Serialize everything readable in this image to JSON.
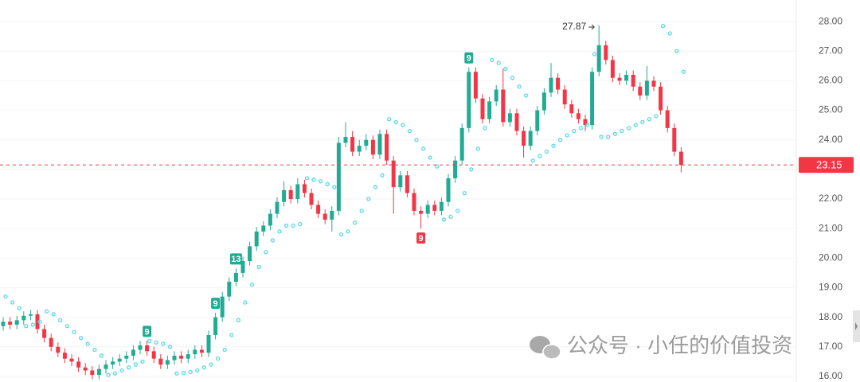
{
  "chart_data": {
    "type": "candlestick",
    "open": [
      17.7,
      17.85,
      17.75,
      17.9,
      18.05,
      18.1,
      17.6,
      17.3,
      17.0,
      16.8,
      16.6,
      16.5,
      16.3,
      16.2,
      16.05,
      16.25,
      16.4,
      16.5,
      16.6,
      16.7,
      16.9,
      17.05,
      16.85,
      16.6,
      16.4,
      16.55,
      16.7,
      16.6,
      16.75,
      16.9,
      16.8,
      17.4,
      18.0,
      18.7,
      19.2,
      19.5,
      19.9,
      20.4,
      20.9,
      21.1,
      21.5,
      21.9,
      22.3,
      22.0,
      22.5,
      22.2,
      21.8,
      21.5,
      21.3,
      21.6,
      23.9,
      24.1,
      23.6,
      23.8,
      24.0,
      23.5,
      24.2,
      23.3,
      22.4,
      22.8,
      22.2,
      21.6,
      21.5,
      21.8,
      21.6,
      21.9,
      22.7,
      23.3,
      24.4,
      26.3,
      25.4,
      24.7,
      25.3,
      25.7,
      24.6,
      24.9,
      24.3,
      23.8,
      24.3,
      25.0,
      25.6,
      26.1,
      25.7,
      25.2,
      24.9,
      24.7,
      24.5,
      26.3,
      27.2,
      26.7,
      26.1,
      26.0,
      26.2,
      25.8,
      25.5,
      26.0,
      25.8,
      25.0,
      24.4,
      23.6
    ],
    "high": [
      18.0,
      18.0,
      18.05,
      18.2,
      18.25,
      18.25,
      17.75,
      17.45,
      17.15,
      16.95,
      16.75,
      16.65,
      16.45,
      16.35,
      16.4,
      16.55,
      16.65,
      16.75,
      16.85,
      17.05,
      17.2,
      17.2,
      17.0,
      16.75,
      16.7,
      16.85,
      16.85,
      16.9,
      17.05,
      17.05,
      17.55,
      18.15,
      18.85,
      19.35,
      19.65,
      20.05,
      20.55,
      21.05,
      21.25,
      21.65,
      22.05,
      22.6,
      22.45,
      22.7,
      22.65,
      22.35,
      21.95,
      21.65,
      21.75,
      24.1,
      24.6,
      24.3,
      24.0,
      24.2,
      24.15,
      24.35,
      24.35,
      23.45,
      22.95,
      22.95,
      22.35,
      21.75,
      21.95,
      21.95,
      22.05,
      22.85,
      23.45,
      24.55,
      26.45,
      26.45,
      25.55,
      25.45,
      25.85,
      26.4,
      25.05,
      25.05,
      24.45,
      24.45,
      25.15,
      25.75,
      26.6,
      26.25,
      25.85,
      25.35,
      25.05,
      24.85,
      26.45,
      27.87,
      27.35,
      26.85,
      26.25,
      26.35,
      26.35,
      25.95,
      26.5,
      26.15,
      25.95,
      25.15,
      24.55,
      23.75
    ],
    "low": [
      17.55,
      17.6,
      17.6,
      17.75,
      17.9,
      17.45,
      17.15,
      16.85,
      16.65,
      16.45,
      16.35,
      16.15,
      16.05,
      15.9,
      15.9,
      16.1,
      16.25,
      16.35,
      16.45,
      16.55,
      16.75,
      16.7,
      16.45,
      16.25,
      16.25,
      16.4,
      16.45,
      16.45,
      16.6,
      16.65,
      16.65,
      17.25,
      17.85,
      18.55,
      19.05,
      19.35,
      19.75,
      20.25,
      20.75,
      20.95,
      21.35,
      21.75,
      21.85,
      21.85,
      22.05,
      21.65,
      21.35,
      21.15,
      20.9,
      21.45,
      23.75,
      23.45,
      23.45,
      23.65,
      23.35,
      23.35,
      23.15,
      21.5,
      22.25,
      22.05,
      21.45,
      21.0,
      21.35,
      21.45,
      21.45,
      21.75,
      22.55,
      23.15,
      24.25,
      25.25,
      24.55,
      24.55,
      25.15,
      24.45,
      24.45,
      24.15,
      23.4,
      23.65,
      24.15,
      24.85,
      25.45,
      25.55,
      25.05,
      24.75,
      24.55,
      24.3,
      24.35,
      26.15,
      26.55,
      25.95,
      25.85,
      25.85,
      25.65,
      25.35,
      25.35,
      25.65,
      24.85,
      24.25,
      23.45,
      22.9
    ],
    "close": [
      17.85,
      17.75,
      17.9,
      18.05,
      18.1,
      17.6,
      17.3,
      17.0,
      16.8,
      16.6,
      16.5,
      16.3,
      16.2,
      16.05,
      16.25,
      16.4,
      16.5,
      16.6,
      16.7,
      16.9,
      17.05,
      16.85,
      16.6,
      16.4,
      16.55,
      16.7,
      16.6,
      16.75,
      16.9,
      16.8,
      17.4,
      18.0,
      18.7,
      19.2,
      19.5,
      19.9,
      20.4,
      20.9,
      21.1,
      21.5,
      21.9,
      22.3,
      22.0,
      22.5,
      22.2,
      21.8,
      21.5,
      21.3,
      21.6,
      23.9,
      24.1,
      23.6,
      23.8,
      24.0,
      23.5,
      24.2,
      23.3,
      22.4,
      22.8,
      22.2,
      21.6,
      21.5,
      21.8,
      21.6,
      21.9,
      22.7,
      23.3,
      24.4,
      26.3,
      25.4,
      24.7,
      25.3,
      25.7,
      24.6,
      24.9,
      24.3,
      23.8,
      24.3,
      25.0,
      25.6,
      26.1,
      25.7,
      25.2,
      24.9,
      24.7,
      24.5,
      26.3,
      27.2,
      26.7,
      26.1,
      26.0,
      26.2,
      25.8,
      25.5,
      26.0,
      25.8,
      25.0,
      24.4,
      23.6,
      23.15
    ],
    "sar": [
      18.7,
      18.5,
      18.3,
      17.7,
      17.75,
      17.85,
      18.2,
      18.1,
      17.9,
      17.7,
      17.5,
      17.3,
      17.1,
      16.9,
      16.7,
      16.05,
      16.1,
      16.2,
      16.3,
      16.4,
      16.5,
      17.2,
      17.15,
      17.1,
      17.0,
      16.1,
      16.12,
      16.15,
      16.2,
      16.3,
      16.4,
      16.6,
      16.9,
      17.4,
      17.9,
      18.5,
      19.1,
      19.7,
      20.2,
      20.6,
      20.9,
      21.1,
      21.1,
      21.15,
      22.7,
      22.65,
      22.6,
      22.5,
      22.4,
      20.8,
      20.9,
      21.2,
      21.6,
      22.0,
      22.4,
      22.8,
      24.7,
      24.6,
      24.5,
      24.3,
      24.0,
      23.7,
      23.4,
      23.1,
      21.3,
      21.4,
      21.6,
      22.2,
      23.0,
      23.7,
      24.4,
      26.7,
      26.6,
      26.4,
      26.1,
      25.8,
      25.5,
      23.3,
      23.45,
      23.6,
      23.8,
      24.0,
      24.15,
      24.3,
      24.4,
      24.5,
      26.9,
      24.1,
      24.1,
      24.2,
      24.3,
      24.4,
      24.5,
      24.6,
      24.7,
      24.8,
      27.85,
      27.6,
      27.0,
      26.3
    ],
    "up_color": "#22ab94",
    "down_color": "#f23645",
    "sar_color": "#5ad8e6",
    "markers": [
      {
        "index": 21,
        "label": "9",
        "position": "above"
      },
      {
        "index": 31,
        "label": "9",
        "position": "above"
      },
      {
        "index": 34,
        "label": "13",
        "position": "above"
      },
      {
        "index": 61,
        "label": "9",
        "position": "below"
      },
      {
        "index": 68,
        "label": "9",
        "position": "above"
      }
    ],
    "max_annotation": 27.87,
    "last_price": 23.15,
    "ylim": [
      15.81,
      28.73
    ],
    "yticks": [
      {
        "value": 16,
        "label": "16.00"
      },
      {
        "value": 17,
        "label": "17.00"
      },
      {
        "value": 18,
        "label": "18.00"
      },
      {
        "value": 19,
        "label": "19.00"
      },
      {
        "value": 20,
        "label": "20.00"
      },
      {
        "value": 21,
        "label": "21.00"
      },
      {
        "value": 22,
        "label": "22.00"
      },
      {
        "value": 23,
        "label": "23.00"
      },
      {
        "value": 24,
        "label": "24.00"
      },
      {
        "value": 25,
        "label": "25.00"
      },
      {
        "value": 26,
        "label": "26.00"
      },
      {
        "value": 27,
        "label": "27.00"
      },
      {
        "value": 28,
        "label": "28.00"
      }
    ],
    "grid": true,
    "watermark": "公众号 · 小任的价值投资"
  }
}
